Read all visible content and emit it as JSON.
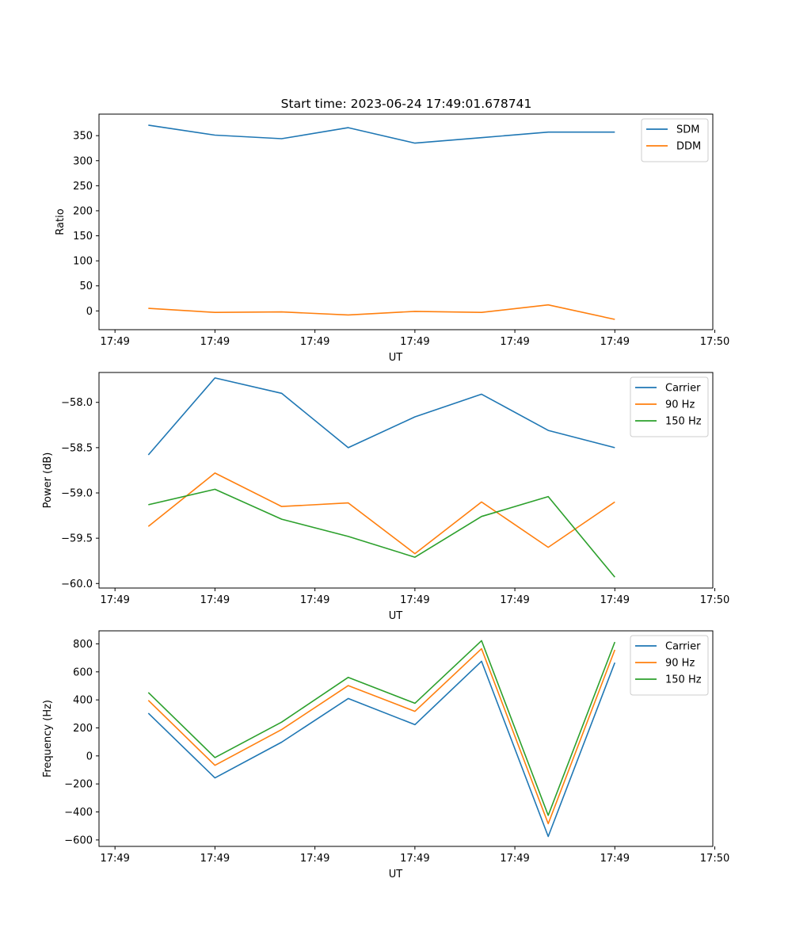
{
  "figure": {
    "title": "Start time: 2023-06-24 17:49:01.678741"
  },
  "chart_data": [
    {
      "type": "line",
      "xlabel": "UT",
      "ylabel": "Ratio",
      "x": [
        1,
        2,
        3,
        4,
        5,
        6,
        7,
        8
      ],
      "xlim": [
        0.26,
        9.47
      ],
      "x_ticks": [
        0.5,
        2,
        3.5,
        5,
        6.5,
        8,
        9.5
      ],
      "x_tick_labels": [
        "17:49",
        "17:49",
        "17:49",
        "17:49",
        "17:49",
        "17:49",
        "17:49"
      ],
      "x_tick_extra_label": "17:50",
      "ylim": [
        -37.5,
        393
      ],
      "y_ticks": [
        0,
        50,
        100,
        150,
        200,
        250,
        300,
        350
      ],
      "y_tick_labels": [
        "0",
        "50",
        "100",
        "150",
        "200",
        "250",
        "300",
        "350"
      ],
      "grid": false,
      "legend_position": "top-right",
      "series": [
        {
          "name": "SDM",
          "color": "#1f77b4",
          "values": [
            371,
            351,
            344,
            366,
            335,
            346,
            357,
            357
          ]
        },
        {
          "name": "DDM",
          "color": "#ff7f0e",
          "values": [
            5,
            -3,
            -2,
            -8,
            -1,
            -3,
            12,
            -17
          ]
        }
      ]
    },
    {
      "type": "line",
      "xlabel": "UT",
      "ylabel": "Power (dB)",
      "x": [
        1,
        2,
        3,
        4,
        5,
        6,
        7,
        8
      ],
      "xlim": [
        0.26,
        9.47
      ],
      "x_ticks": [
        0.5,
        2,
        3.5,
        5,
        6.5,
        8,
        9.5
      ],
      "x_tick_labels": [
        "17:49",
        "17:49",
        "17:49",
        "17:49",
        "17:49",
        "17:49",
        "17:50"
      ],
      "ylim": [
        -60.05,
        -57.67
      ],
      "y_ticks": [
        -60.0,
        -59.5,
        -59.0,
        -58.5,
        -58.0
      ],
      "y_tick_labels": [
        "−60.0",
        "−59.5",
        "−59.0",
        "−58.5",
        "−58.0"
      ],
      "grid": false,
      "legend_position": "top-right",
      "series": [
        {
          "name": "Carrier",
          "color": "#1f77b4",
          "values": [
            -58.58,
            -57.73,
            -57.9,
            -58.5,
            -58.16,
            -57.91,
            -58.31,
            -58.5
          ]
        },
        {
          "name": "90 Hz",
          "color": "#ff7f0e",
          "values": [
            -59.37,
            -58.78,
            -59.15,
            -59.11,
            -59.67,
            -59.1,
            -59.6,
            -59.1
          ]
        },
        {
          "name": "150 Hz",
          "color": "#2ca02c",
          "values": [
            -59.13,
            -58.96,
            -59.29,
            -59.48,
            -59.71,
            -59.26,
            -59.04,
            -59.93
          ]
        }
      ]
    },
    {
      "type": "line",
      "xlabel": "UT",
      "ylabel": "Frequency (Hz)",
      "x": [
        1,
        2,
        3,
        4,
        5,
        6,
        7,
        8
      ],
      "xlim": [
        0.26,
        9.47
      ],
      "x_ticks": [
        0.5,
        2,
        3.5,
        5,
        6.5,
        8,
        9.5
      ],
      "x_tick_labels": [
        "17:49",
        "17:49",
        "17:49",
        "17:49",
        "17:49",
        "17:49",
        "17:50"
      ],
      "ylim": [
        -646,
        893
      ],
      "y_ticks": [
        -600,
        -400,
        -200,
        0,
        200,
        400,
        600,
        800
      ],
      "y_tick_labels": [
        "−600",
        "−400",
        "−200",
        "0",
        "200",
        "400",
        "600",
        "800"
      ],
      "grid": false,
      "legend_position": "top-right",
      "series": [
        {
          "name": "Carrier",
          "color": "#1f77b4",
          "values": [
            305,
            -157,
            98,
            410,
            223,
            676,
            -575,
            666
          ]
        },
        {
          "name": "90 Hz",
          "color": "#ff7f0e",
          "values": [
            397,
            -67,
            188,
            502,
            318,
            765,
            -484,
            757
          ]
        },
        {
          "name": "150 Hz",
          "color": "#2ca02c",
          "values": [
            453,
            -12,
            241,
            561,
            376,
            823,
            -425,
            813
          ]
        }
      ]
    }
  ]
}
